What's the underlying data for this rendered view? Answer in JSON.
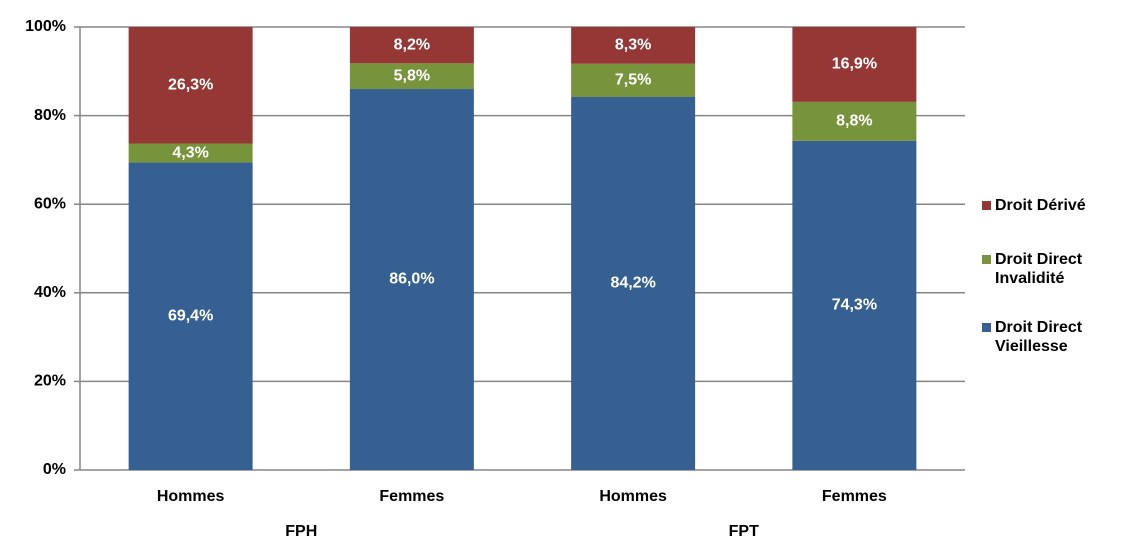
{
  "chart_data": {
    "type": "stacked_bar",
    "categories": [
      "Hommes",
      "Femmes",
      "Hommes",
      "Femmes"
    ],
    "groups": [
      "FPH",
      "FPT"
    ],
    "series": [
      {
        "name": "Droit Direct Vieillesse",
        "color": "#376092",
        "values": [
          69.4,
          86.0,
          84.2,
          74.3
        ],
        "value_labels": [
          "69,4%",
          "86,0%",
          "84,2%",
          "74,3%"
        ]
      },
      {
        "name": "Droit Direct Invalidité",
        "color": "#77933c",
        "values": [
          4.3,
          5.8,
          7.5,
          8.8
        ],
        "value_labels": [
          "4,3%",
          "5,8%",
          "7,5%",
          "8,8%"
        ]
      },
      {
        "name": "Droit Dérivé",
        "color": "#953735",
        "values": [
          26.3,
          8.2,
          8.3,
          16.9
        ],
        "value_labels": [
          "26,3%",
          "8,2%",
          "8,3%",
          "16,9%"
        ]
      }
    ],
    "ylim": [
      0,
      100
    ],
    "yticks": [
      {
        "value": 0,
        "label": "0%"
      },
      {
        "value": 20,
        "label": "20%"
      },
      {
        "value": 40,
        "label": "40%"
      },
      {
        "value": 60,
        "label": "60%"
      },
      {
        "value": 80,
        "label": "80%"
      },
      {
        "value": 100,
        "label": "100%"
      }
    ],
    "grid": true,
    "legend": "right"
  }
}
